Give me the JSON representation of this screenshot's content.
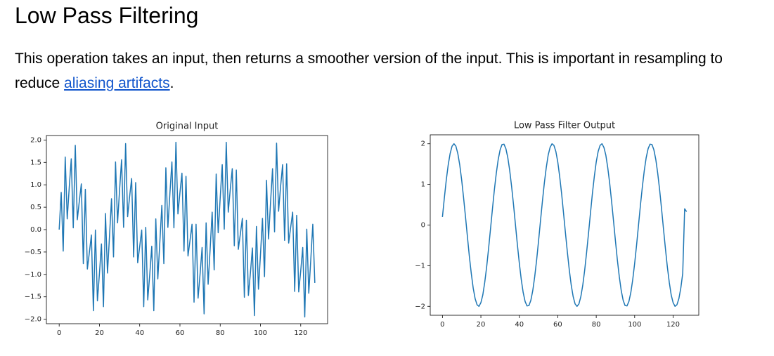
{
  "header": {
    "title": "Low Pass Filtering"
  },
  "paragraph": {
    "text_before": "This operation takes an input, then returns a smoother version of the input. This is important in resampling to reduce ",
    "link": "aliasing artifacts",
    "text_after": "."
  },
  "chart_data": [
    {
      "type": "line",
      "title": "Original Input",
      "color": "#1f77b4",
      "x": [
        0,
        1,
        2,
        3,
        4,
        5,
        6,
        7,
        8,
        9,
        10,
        11,
        12,
        13,
        14,
        15,
        16,
        17,
        18,
        19,
        20,
        21,
        22,
        23,
        24,
        25,
        26,
        27,
        28,
        29,
        30,
        31,
        32,
        33,
        34,
        35,
        36,
        37,
        38,
        39,
        40,
        41,
        42,
        43,
        44,
        45,
        46,
        47,
        48,
        49,
        50,
        51,
        52,
        53,
        54,
        55,
        56,
        57,
        58,
        59,
        60,
        61,
        62,
        63,
        64,
        65,
        66,
        67,
        68,
        69,
        70,
        71,
        72,
        73,
        74,
        75,
        76,
        77,
        78,
        79,
        80,
        81,
        82,
        83,
        84,
        85,
        86,
        87,
        88,
        89,
        90,
        91,
        92,
        93,
        94,
        95,
        96,
        97,
        98,
        99,
        100,
        101,
        102,
        103,
        104,
        105,
        106,
        107,
        108,
        109,
        110,
        111,
        112,
        113,
        114,
        115,
        116,
        117,
        118,
        119,
        120,
        121,
        122,
        123,
        124,
        125,
        126,
        127
      ],
      "values": [
        0,
        0.83,
        -0.48,
        1.62,
        0.24,
        0.94,
        1.58,
        0.04,
        1.88,
        0.22,
        0.63,
        1.02,
        -0.76,
        0.9,
        -0.88,
        -0.51,
        -0.12,
        -1.81,
        -0.01,
        -1.59,
        -0.98,
        -0.32,
        -1.72,
        0.36,
        -0.97,
        -0.15,
        0.69,
        -0.61,
        1.51,
        0.15,
        0.88,
        1.56,
        0.05,
        1.92,
        0.29,
        0.74,
        1.14,
        -0.61,
        1.05,
        -0.74,
        -0.38,
        -0.01,
        -1.72,
        0.05,
        -1.57,
        -1.0,
        -0.37,
        -1.81,
        0.24,
        -1.1,
        -0.29,
        0.54,
        -0.76,
        1.38,
        0.05,
        0.8,
        1.51,
        0.04,
        1.95,
        0.35,
        0.83,
        1.26,
        -0.48,
        1.19,
        -0.59,
        -0.24,
        0.12,
        -1.62,
        0.12,
        -1.53,
        -0.99,
        -0.4,
        -1.88,
        0.15,
        -1.22,
        -0.43,
        0.39,
        -0.9,
        1.24,
        -0.07,
        0.71,
        1.45,
        0.01,
        1.95,
        0.39,
        0.9,
        1.36,
        -0.36,
        1.33,
        -0.44,
        -0.1,
        0.25,
        -1.51,
        0.21,
        -1.47,
        -0.97,
        -0.41,
        -1.92,
        0.07,
        -1.33,
        -0.56,
        0.25,
        -1.05,
        1.1,
        -0.21,
        0.6,
        1.36,
        -0.05,
        1.93,
        0.41,
        0.96,
        1.45,
        -0.24,
        1.47,
        -0.3,
        0.05,
        0.39,
        -1.38,
        0.32,
        -1.39,
        -0.92,
        -0.4,
        -1.95,
        0.01,
        -1.42,
        -0.67,
        0.12,
        -1.19
      ],
      "xlim": [
        -6.35,
        133.35
      ],
      "ylim": [
        -2.1,
        2.1
      ],
      "xticks": [
        0,
        20,
        40,
        60,
        80,
        100,
        120
      ],
      "yticks": [
        {
          "value": -2,
          "label": "−2.0"
        },
        {
          "value": -1.5,
          "label": "−1.5"
        },
        {
          "value": -1,
          "label": "−1.0"
        },
        {
          "value": -0.5,
          "label": "−0.5"
        },
        {
          "value": 0,
          "label": "0.0"
        },
        {
          "value": 0.5,
          "label": "0.5"
        },
        {
          "value": 1,
          "label": "1.0"
        },
        {
          "value": 1.5,
          "label": "1.5"
        },
        {
          "value": 2,
          "label": "2.0"
        }
      ]
    },
    {
      "type": "line",
      "title": "Low Pass Filter Output",
      "color": "#1f77b4",
      "x": [
        0,
        1,
        2,
        3,
        4,
        5,
        6,
        7,
        8,
        9,
        10,
        11,
        12,
        13,
        14,
        15,
        16,
        17,
        18,
        19,
        20,
        21,
        22,
        23,
        24,
        25,
        26,
        27,
        28,
        29,
        30,
        31,
        32,
        33,
        34,
        35,
        36,
        37,
        38,
        39,
        40,
        41,
        42,
        43,
        44,
        45,
        46,
        47,
        48,
        49,
        50,
        51,
        52,
        53,
        54,
        55,
        56,
        57,
        58,
        59,
        60,
        61,
        62,
        63,
        64,
        65,
        66,
        67,
        68,
        69,
        70,
        71,
        72,
        73,
        74,
        75,
        76,
        77,
        78,
        79,
        80,
        81,
        82,
        83,
        84,
        85,
        86,
        87,
        88,
        89,
        90,
        91,
        92,
        93,
        94,
        95,
        96,
        97,
        98,
        99,
        100,
        101,
        102,
        103,
        104,
        105,
        106,
        107,
        108,
        109,
        110,
        111,
        112,
        113,
        114,
        115,
        116,
        117,
        118,
        119,
        120,
        121,
        122,
        123,
        124,
        125,
        126,
        127
      ],
      "values": [
        0.2,
        0.67,
        1.11,
        1.48,
        1.76,
        1.94,
        2.0,
        1.94,
        1.76,
        1.48,
        1.11,
        0.67,
        0.2,
        -0.29,
        -0.77,
        -1.19,
        -1.55,
        -1.81,
        -1.96,
        -2.0,
        -1.91,
        -1.72,
        -1.41,
        -1.03,
        -0.58,
        -0.1,
        0.39,
        0.86,
        1.27,
        1.61,
        1.85,
        1.98,
        1.99,
        1.88,
        1.66,
        1.34,
        0.94,
        0.49,
        0,
        -0.49,
        -0.94,
        -1.34,
        -1.66,
        -1.88,
        -1.99,
        -1.98,
        -1.85,
        -1.61,
        -1.27,
        -0.86,
        -0.39,
        0.1,
        0.58,
        1.03,
        1.41,
        1.72,
        1.91,
        2.0,
        1.96,
        1.81,
        1.55,
        1.19,
        0.77,
        0.29,
        -0.2,
        -0.67,
        -1.11,
        -1.48,
        -1.76,
        -1.94,
        -2.0,
        -1.94,
        -1.76,
        -1.48,
        -1.11,
        -0.67,
        -0.2,
        0.29,
        0.77,
        1.19,
        1.55,
        1.81,
        1.96,
        2.0,
        1.91,
        1.72,
        1.41,
        1.03,
        0.58,
        0.1,
        -0.39,
        -0.86,
        -1.27,
        -1.61,
        -1.85,
        -1.98,
        -1.99,
        -1.88,
        -1.66,
        -1.34,
        -0.94,
        -0.49,
        0,
        0.49,
        0.94,
        1.34,
        1.66,
        1.88,
        1.99,
        1.98,
        1.85,
        1.61,
        1.27,
        0.86,
        0.39,
        -0.1,
        -0.58,
        -1.03,
        -1.41,
        -1.72,
        -1.91,
        -2.0,
        -1.96,
        -1.81,
        -1.55,
        -1.19,
        0.4,
        0.33
      ],
      "xlim": [
        -6.35,
        133.35
      ],
      "ylim": [
        -2.22,
        2.22
      ],
      "xticks": [
        0,
        20,
        40,
        60,
        80,
        100,
        120
      ],
      "yticks": [
        {
          "value": -2,
          "label": "−2"
        },
        {
          "value": -1,
          "label": "−1"
        },
        0,
        1,
        2
      ]
    }
  ]
}
